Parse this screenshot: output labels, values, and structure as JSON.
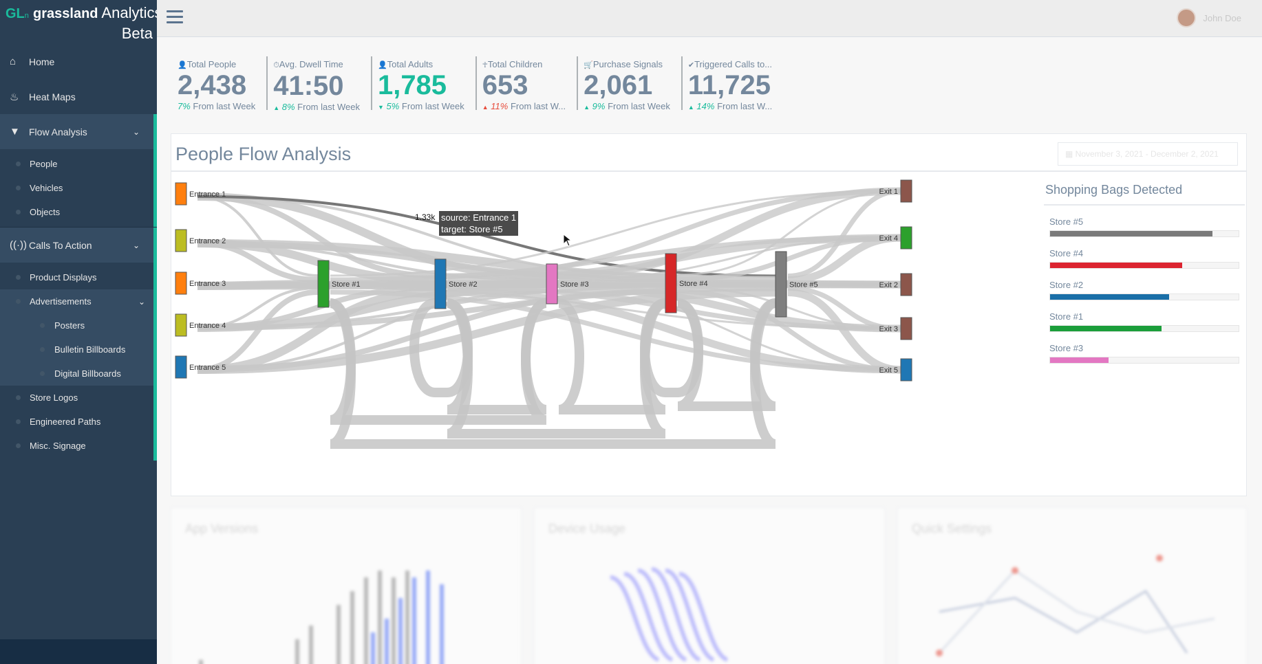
{
  "brand": {
    "logo": "GL",
    "logo_sub": "n",
    "name": "grassland",
    "suffix": "Analytics",
    "beta": "Beta"
  },
  "sidebar": {
    "home": "Home",
    "heat_maps": "Heat Maps",
    "flow_analysis": "Flow Analysis",
    "flow_items": [
      "People",
      "Vehicles",
      "Objects"
    ],
    "calls_to_action": "Calls To Action",
    "cta_items": {
      "product_displays": "Product Displays",
      "advertisements": "Advertisements"
    },
    "ads_items": [
      "Posters",
      "Bulletin Billboards",
      "Digital Billboards"
    ],
    "more_items": [
      "Store Logos",
      "Engineered Paths",
      "Misc. Signage"
    ]
  },
  "topbar": {
    "user_name": "John Doe"
  },
  "stats": [
    {
      "label": "Total People",
      "value": "2,438",
      "pct": "7%",
      "suffix": "From last Week",
      "trend": "none",
      "value_color": "#73879c"
    },
    {
      "label": "Avg. Dwell Time",
      "value": "41:50",
      "pct": "8%",
      "suffix": "From last Week",
      "trend": "up-green",
      "value_color": "#73879c"
    },
    {
      "label": "Total Adults",
      "value": "1,785",
      "pct": "5%",
      "suffix": "From last Week",
      "trend": "down-green",
      "value_color": "#1abb9c"
    },
    {
      "label": "Total Children",
      "value": "653",
      "pct": "11%",
      "suffix": "From last W...",
      "trend": "up-red",
      "value_color": "#73879c"
    },
    {
      "label": "Purchase Signals",
      "value": "2,061",
      "pct": "9%",
      "suffix": "From last Week",
      "trend": "up-green",
      "value_color": "#73879c"
    },
    {
      "label": "Triggered Calls to...",
      "value": "11,725",
      "pct": "14%",
      "suffix": "From last W...",
      "trend": "up-green",
      "value_color": "#73879c"
    }
  ],
  "panel": {
    "title": "People Flow Analysis",
    "date_range": "November 3, 2021 - December 2, 2021"
  },
  "sankey": {
    "sources": [
      {
        "name": "Entrance 1",
        "color": "#ff7f0e"
      },
      {
        "name": "Entrance 2",
        "color": "#bcbd22"
      },
      {
        "name": "Entrance 3",
        "color": "#ff7f0e"
      },
      {
        "name": "Entrance 4",
        "color": "#bcbd22"
      },
      {
        "name": "Entrance 5",
        "color": "#1f77b4"
      }
    ],
    "stores": [
      {
        "name": "Store #1",
        "color": "#2ca02c"
      },
      {
        "name": "Store #2",
        "color": "#1f77b4"
      },
      {
        "name": "Store #3",
        "color": "#e377c2"
      },
      {
        "name": "Store #4",
        "color": "#d62728"
      },
      {
        "name": "Store #5",
        "color": "#7f7f7f"
      }
    ],
    "exits": [
      {
        "name": "Exit 1",
        "color": "#8c564b"
      },
      {
        "name": "Exit 4",
        "color": "#2ca02c"
      },
      {
        "name": "Exit 2",
        "color": "#8c564b"
      },
      {
        "name": "Exit 3",
        "color": "#8c564b"
      },
      {
        "name": "Exit 5",
        "color": "#1f77b4"
      }
    ],
    "tooltip": {
      "value": "1.33k",
      "source": "source: Entrance 1",
      "target": "target: Store #5"
    }
  },
  "bags": {
    "title": "Shopping Bags Detected",
    "items": [
      {
        "name": "Store #5",
        "fraction": 0.86,
        "color": "#7a7a7a"
      },
      {
        "name": "Store #4",
        "fraction": 0.7,
        "color": "#dc2430"
      },
      {
        "name": "Store #2",
        "fraction": 0.63,
        "color": "#1a6fa8"
      },
      {
        "name": "Store #1",
        "fraction": 0.59,
        "color": "#1b9e3a"
      },
      {
        "name": "Store #3",
        "fraction": 0.31,
        "color": "#e377c2"
      }
    ]
  },
  "bottom_panels": [
    "App Versions",
    "Device Usage",
    "Quick Settings"
  ]
}
